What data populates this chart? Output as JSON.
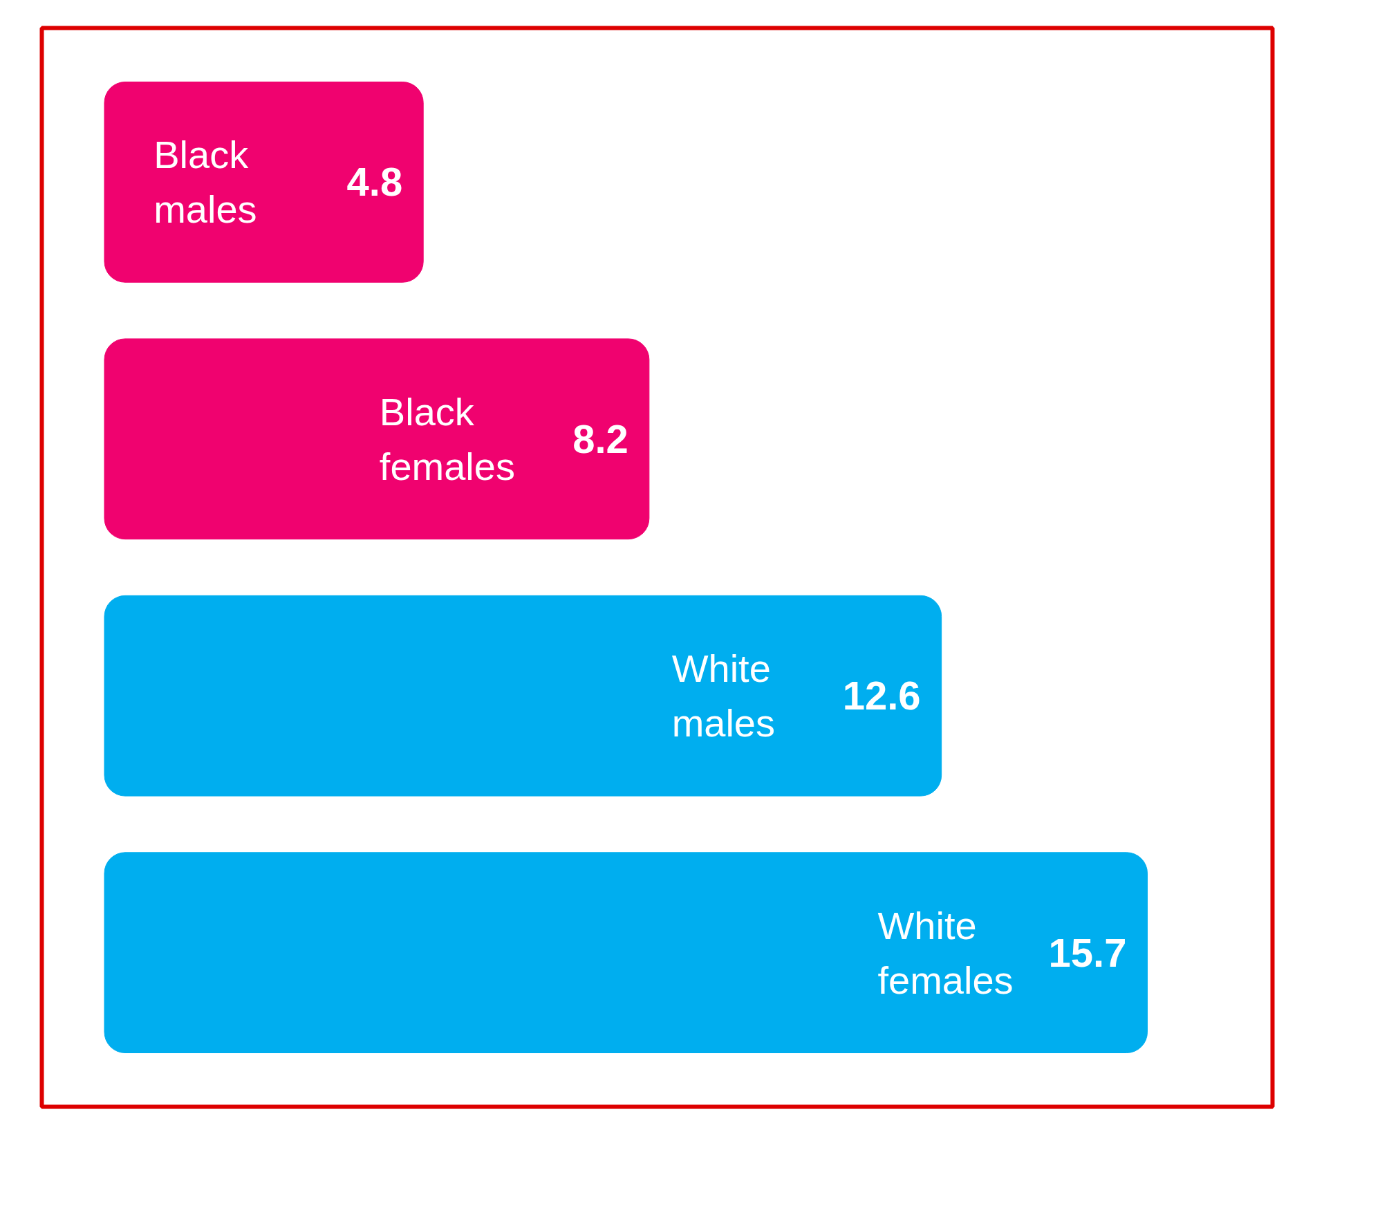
{
  "chart_data": {
    "type": "bar",
    "orientation": "horizontal",
    "categories": [
      "Black males",
      "Black females",
      "White males",
      "White females"
    ],
    "values": [
      4.8,
      8.2,
      12.6,
      15.7
    ],
    "colors": [
      "#f0026f",
      "#f0026f",
      "#00aeef",
      "#00aeef"
    ],
    "data_labels": true,
    "tick_labels": false
  }
}
